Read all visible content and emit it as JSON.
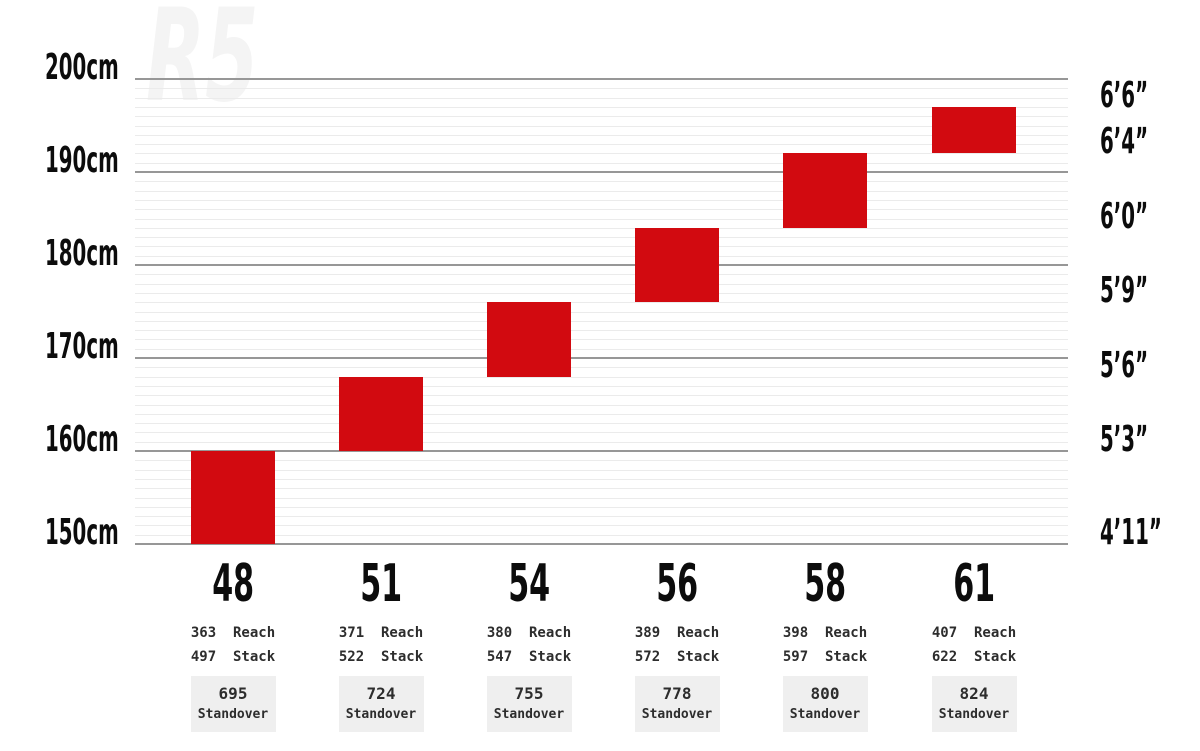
{
  "watermark": "R5",
  "colors": {
    "background": "#ffffff",
    "bar": "#d20a10",
    "major_grid": "#979797",
    "minor_grid": "#ebebeb",
    "text": "#0c0c0c",
    "geo_text": "#2d2d2d",
    "standover_bg": "#efefef",
    "watermark": "#f4f4f4"
  },
  "chart_data": {
    "type": "bar",
    "subtype": "floating-range-columns",
    "description_visible_units": "rider height in cm (left axis) and feet/inches (right axis); reach, stack, standover in mm",
    "ylim_cm": [
      150,
      200
    ],
    "grid": {
      "minor_step_cm": 1,
      "major_step_cm": 10,
      "grid_on": true
    },
    "left_axis": [
      {
        "label": "200cm",
        "cm": 200
      },
      {
        "label": "190cm",
        "cm": 190
      },
      {
        "label": "180cm",
        "cm": 180
      },
      {
        "label": "170cm",
        "cm": 170
      },
      {
        "label": "160cm",
        "cm": 160
      },
      {
        "label": "150cm",
        "cm": 150
      }
    ],
    "right_axis": [
      {
        "label": "6’6”",
        "cm": 197
      },
      {
        "label": "6’4”",
        "cm": 192
      },
      {
        "label": "6’0”",
        "cm": 184
      },
      {
        "label": "5’9”",
        "cm": 176
      },
      {
        "label": "5’6”",
        "cm": 168
      },
      {
        "label": "5’3”",
        "cm": 160
      },
      {
        "label": "4’11”",
        "cm": 150
      }
    ],
    "row_labels": {
      "reach": "Reach",
      "stack": "Stack",
      "standover": "Standover"
    },
    "sizes": [
      {
        "size": "48",
        "min_height_cm": 150,
        "max_height_cm": 160,
        "reach_mm": 363,
        "stack_mm": 497,
        "standover_mm": 695
      },
      {
        "size": "51",
        "min_height_cm": 160,
        "max_height_cm": 168,
        "reach_mm": 371,
        "stack_mm": 522,
        "standover_mm": 724
      },
      {
        "size": "54",
        "min_height_cm": 168,
        "max_height_cm": 176,
        "reach_mm": 380,
        "stack_mm": 547,
        "standover_mm": 755
      },
      {
        "size": "56",
        "min_height_cm": 176,
        "max_height_cm": 184,
        "reach_mm": 389,
        "stack_mm": 572,
        "standover_mm": 778
      },
      {
        "size": "58",
        "min_height_cm": 184,
        "max_height_cm": 192,
        "reach_mm": 398,
        "stack_mm": 597,
        "standover_mm": 800
      },
      {
        "size": "61",
        "min_height_cm": 192,
        "max_height_cm": 197,
        "reach_mm": 407,
        "stack_mm": 622,
        "standover_mm": 824
      }
    ],
    "bar_color": "#d20a10",
    "legend": null,
    "title": ""
  }
}
